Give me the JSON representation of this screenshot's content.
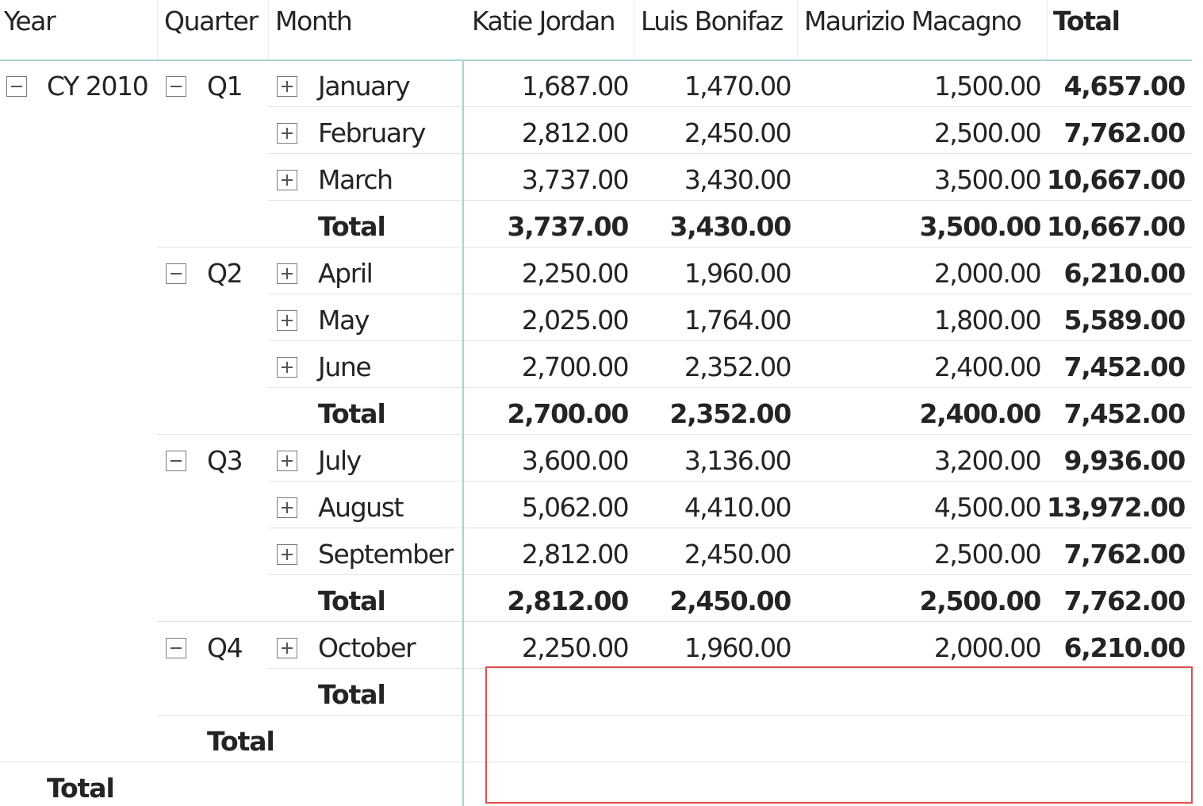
{
  "matrix": {
    "headers": {
      "year": "Year",
      "quarter": "Quarter",
      "month": "Month",
      "columns": [
        "Katie Jordan",
        "Luis Bonifaz",
        "Maurizio Macagno",
        "Total"
      ]
    },
    "year_label": "CY 2010",
    "quarters": [
      {
        "label": "Q1",
        "months": [
          {
            "name": "January",
            "values": [
              "1,687.00",
              "1,470.00",
              "1,500.00",
              "4,657.00"
            ]
          },
          {
            "name": "February",
            "values": [
              "2,812.00",
              "2,450.00",
              "2,500.00",
              "7,762.00"
            ]
          },
          {
            "name": "March",
            "values": [
              "3,737.00",
              "3,430.00",
              "3,500.00",
              "10,667.00"
            ]
          }
        ],
        "total_label": "Total",
        "total_values": [
          "3,737.00",
          "3,430.00",
          "3,500.00",
          "10,667.00"
        ]
      },
      {
        "label": "Q2",
        "months": [
          {
            "name": "April",
            "values": [
              "2,250.00",
              "1,960.00",
              "2,000.00",
              "6,210.00"
            ]
          },
          {
            "name": "May",
            "values": [
              "2,025.00",
              "1,764.00",
              "1,800.00",
              "5,589.00"
            ]
          },
          {
            "name": "June",
            "values": [
              "2,700.00",
              "2,352.00",
              "2,400.00",
              "7,452.00"
            ]
          }
        ],
        "total_label": "Total",
        "total_values": [
          "2,700.00",
          "2,352.00",
          "2,400.00",
          "7,452.00"
        ]
      },
      {
        "label": "Q3",
        "months": [
          {
            "name": "July",
            "values": [
              "3,600.00",
              "3,136.00",
              "3,200.00",
              "9,936.00"
            ]
          },
          {
            "name": "August",
            "values": [
              "5,062.00",
              "4,410.00",
              "4,500.00",
              "13,972.00"
            ]
          },
          {
            "name": "September",
            "values": [
              "2,812.00",
              "2,450.00",
              "2,500.00",
              "7,762.00"
            ]
          }
        ],
        "total_label": "Total",
        "total_values": [
          "2,812.00",
          "2,450.00",
          "2,500.00",
          "7,762.00"
        ]
      },
      {
        "label": "Q4",
        "months": [
          {
            "name": "October",
            "values": [
              "2,250.00",
              "1,960.00",
              "2,000.00",
              "6,210.00"
            ]
          }
        ],
        "total_label": "Total",
        "total_values": []
      }
    ],
    "year_total_label": "Total",
    "grand_total_label": "Total"
  },
  "colors": {
    "text": "#252423",
    "header_rule": "#a7d4cc",
    "highlight_border": "#e05050"
  },
  "icons": {
    "collapse": "minus-in-box",
    "expand": "plus-in-box"
  }
}
